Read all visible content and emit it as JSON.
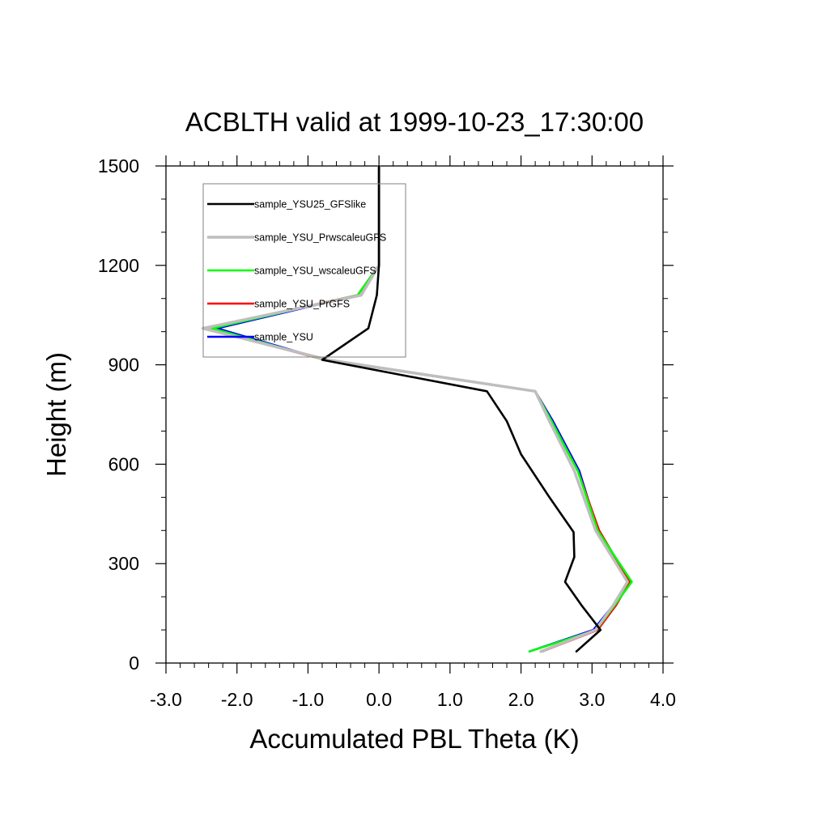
{
  "chart_data": {
    "type": "line",
    "title": "ACBLTH valid at 1999-10-23_17:30:00",
    "xlabel": "Accumulated PBL Theta (K)",
    "ylabel": "Height (m)",
    "xlim": [
      -3.0,
      4.0
    ],
    "ylim": [
      0,
      1500
    ],
    "xticks": [
      "-3.0",
      "-2.0",
      "-1.0",
      "0.0",
      "1.0",
      "2.0",
      "3.0",
      "4.0"
    ],
    "yticks": [
      "0",
      "300",
      "600",
      "900",
      "1200",
      "1500"
    ],
    "grid": false,
    "legend_position": "top-left",
    "series": [
      {
        "name": "sample_YSU25_GFSlike",
        "color": "#000000",
        "points": [
          [
            2.78,
            35
          ],
          [
            3.12,
            100
          ],
          [
            2.85,
            175
          ],
          [
            2.62,
            245
          ],
          [
            2.75,
            320
          ],
          [
            2.74,
            395
          ],
          [
            2.4,
            500
          ],
          [
            2.0,
            630
          ],
          [
            1.8,
            730
          ],
          [
            1.52,
            820
          ],
          [
            -0.8,
            915
          ],
          [
            -0.15,
            1010
          ],
          [
            -0.03,
            1110
          ],
          [
            0.0,
            1200
          ],
          [
            0.0,
            1320
          ],
          [
            0.0,
            1500
          ]
        ]
      },
      {
        "name": "sample_YSU_PrwscaleuGFS",
        "color": "#bebebe",
        "points": [
          [
            2.28,
            35
          ],
          [
            3.05,
            100
          ],
          [
            3.3,
            175
          ],
          [
            3.5,
            245
          ],
          [
            3.05,
            400
          ],
          [
            2.75,
            580
          ],
          [
            2.4,
            730
          ],
          [
            2.2,
            820
          ],
          [
            -0.72,
            915
          ],
          [
            -2.48,
            1010
          ],
          [
            -0.25,
            1110
          ],
          [
            0.0,
            1200
          ],
          [
            0.0,
            1320
          ],
          [
            0.0,
            1500
          ]
        ]
      },
      {
        "name": "sample_YSU_wscaleuGFS",
        "color": "#00ff00",
        "points": [
          [
            2.12,
            35
          ],
          [
            3.06,
            100
          ],
          [
            3.32,
            175
          ],
          [
            3.56,
            245
          ],
          [
            3.08,
            400
          ],
          [
            2.8,
            580
          ],
          [
            2.43,
            730
          ],
          [
            2.2,
            820
          ],
          [
            -0.76,
            915
          ],
          [
            -2.35,
            1010
          ],
          [
            -0.3,
            1110
          ],
          [
            0.0,
            1200
          ],
          [
            0.0,
            1320
          ],
          [
            0.0,
            1500
          ]
        ]
      },
      {
        "name": "sample_YSU_PrGFS",
        "color": "#ff0000",
        "points": [
          [
            2.3,
            35
          ],
          [
            3.08,
            100
          ],
          [
            3.34,
            175
          ],
          [
            3.53,
            245
          ],
          [
            3.1,
            400
          ],
          [
            2.8,
            580
          ],
          [
            2.43,
            730
          ],
          [
            2.2,
            820
          ],
          [
            -0.76,
            915
          ],
          [
            -2.45,
            1010
          ],
          [
            -0.3,
            1110
          ],
          [
            0.0,
            1200
          ],
          [
            0.0,
            1320
          ],
          [
            0.0,
            1500
          ]
        ]
      },
      {
        "name": "sample_YSU",
        "color": "#0000ff",
        "points": [
          [
            2.12,
            35
          ],
          [
            3.02,
            100
          ],
          [
            3.3,
            175
          ],
          [
            3.55,
            245
          ],
          [
            3.08,
            400
          ],
          [
            2.82,
            580
          ],
          [
            2.45,
            730
          ],
          [
            2.2,
            820
          ],
          [
            -0.76,
            915
          ],
          [
            -2.28,
            1010
          ],
          [
            -0.3,
            1110
          ],
          [
            0.0,
            1200
          ],
          [
            0.0,
            1320
          ],
          [
            0.0,
            1500
          ]
        ]
      }
    ]
  }
}
